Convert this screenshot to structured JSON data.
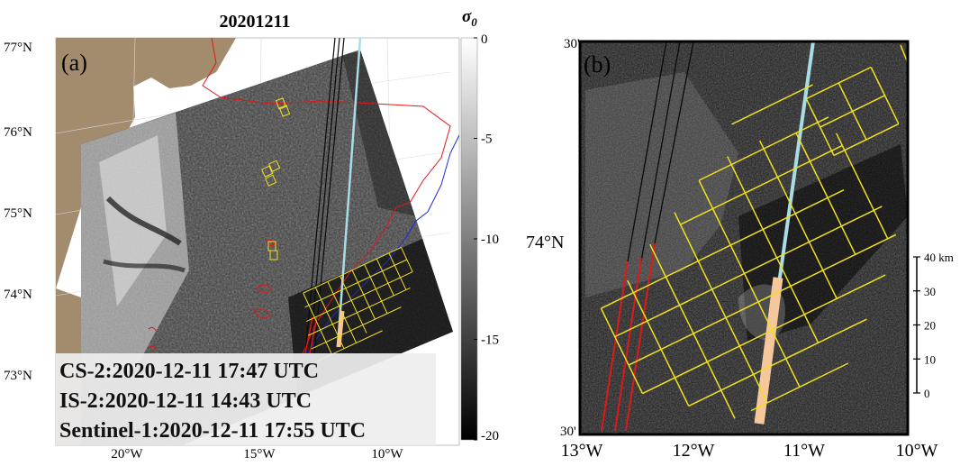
{
  "panel_a": {
    "title": "20201211",
    "label": "(a)",
    "lat_labels": [
      "77°N",
      "76°N",
      "75°N",
      "74°N",
      "73°N"
    ],
    "lon_labels": [
      "20°W",
      "15°W",
      "10°W"
    ],
    "colorbar": {
      "title": "σ0",
      "ticks": [
        "0",
        "-5",
        "-10",
        "-15",
        "-20"
      ],
      "range": [
        -20,
        0
      ],
      "unit_symbol": "σ",
      "unit_subscript": "0"
    },
    "timestamps": [
      "CS-2:2020-12-11 17:47 UTC",
      "IS-2:2020-12-11 14:43 UTC",
      "Sentinel-1:2020-12-11 17:55 UTC"
    ]
  },
  "panel_b": {
    "label": "(b)",
    "lat_label": "74°N",
    "corner_top": "30'",
    "corner_bottom": "30'",
    "lon_labels": [
      "13°W",
      "12°W",
      "11°W",
      "10°W"
    ],
    "scale_bar": {
      "unit": "km",
      "ticks": [
        "40 km",
        "30",
        "20",
        "10",
        "0"
      ],
      "max": 40
    }
  },
  "colors": {
    "land": "#a38b6e",
    "cs2_track": "#0a0a0a",
    "is2_track": "#a8dde6",
    "sentinel_grid": "#f0e020",
    "ice_edge_red": "#e01818",
    "ice_edge_blue": "#1a2ad8",
    "highlight": "#f5c79a"
  }
}
